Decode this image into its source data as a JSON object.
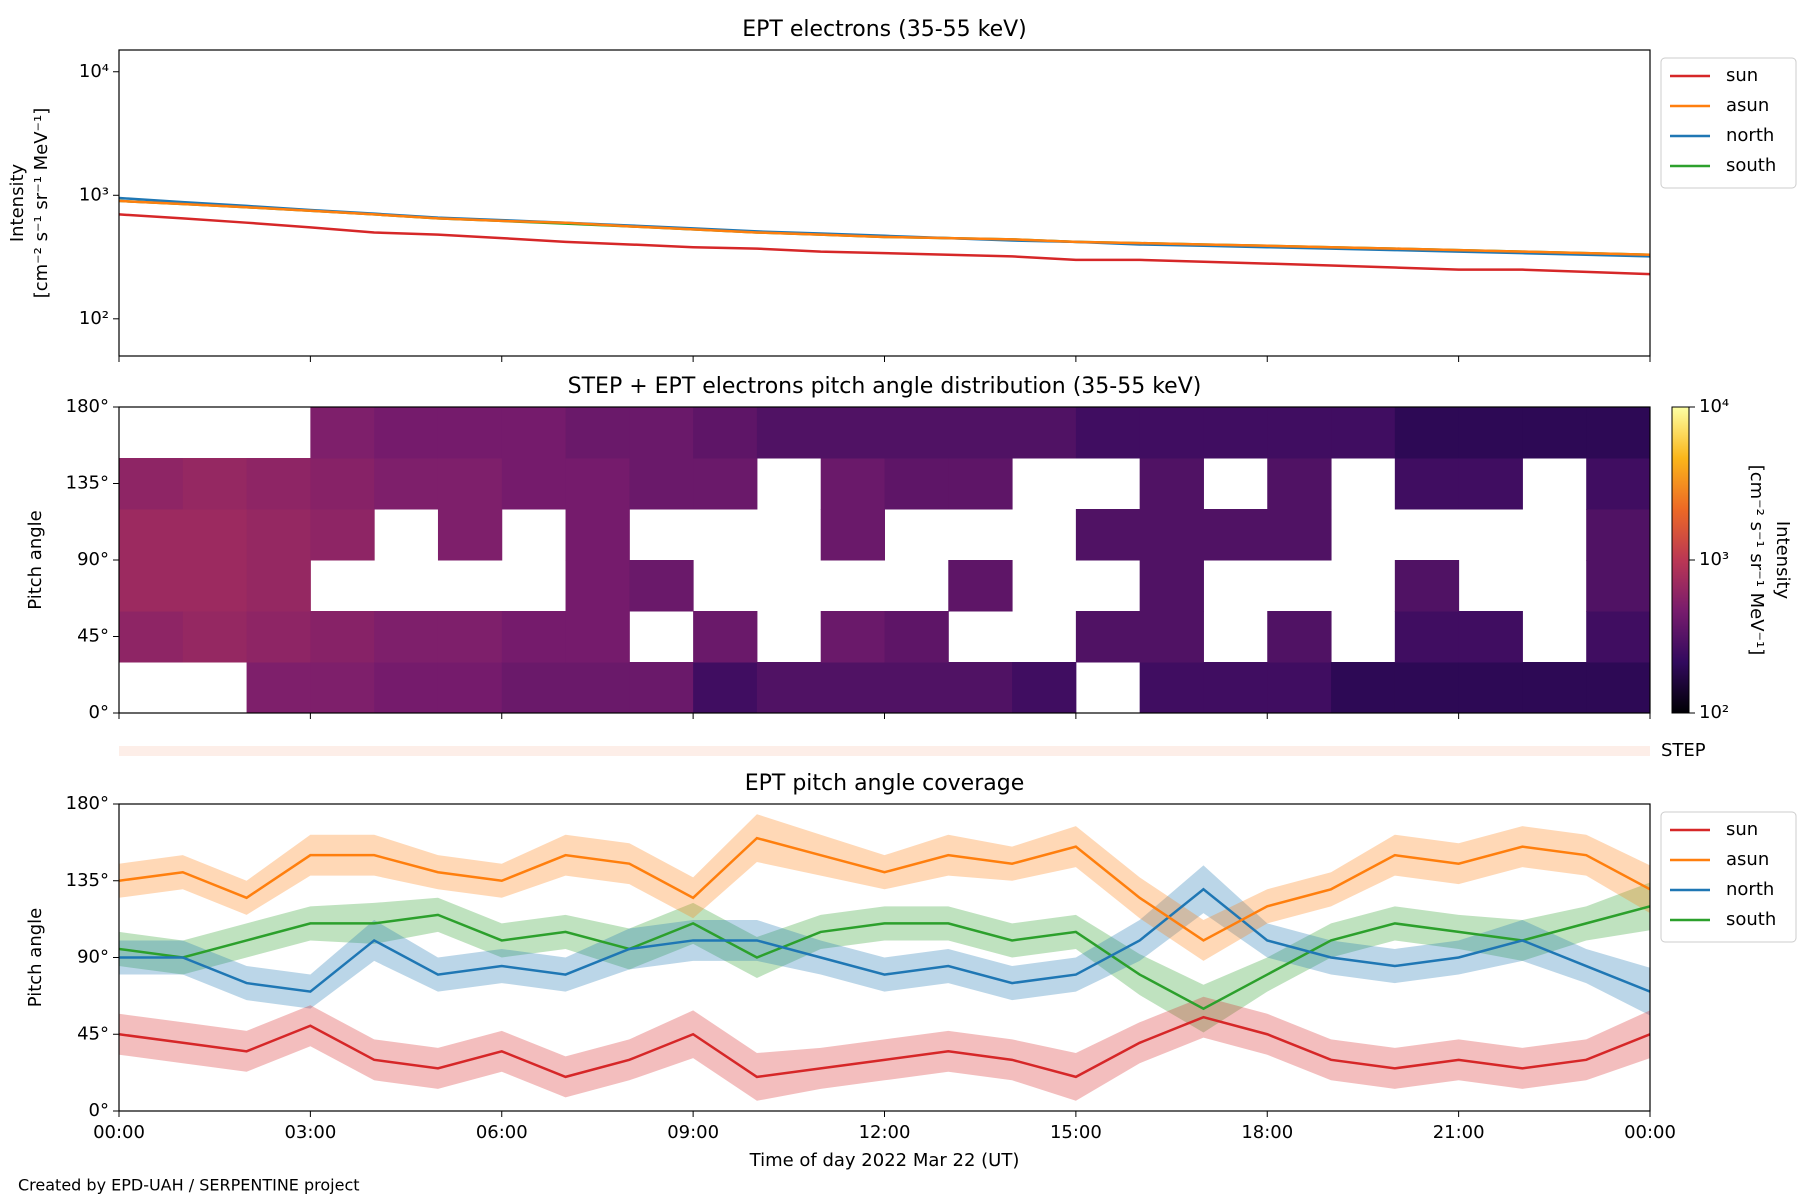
{
  "chart_data": [
    {
      "type": "line",
      "title": "EPT electrons (35-55 keV)",
      "ylabel": [
        "Intensity",
        "[cm⁻² s⁻¹ sr⁻¹ MeV⁻¹]"
      ],
      "log_y": true,
      "ylim": [
        50,
        15000
      ],
      "yticks": [
        {
          "value": 100,
          "label": "10²"
        },
        {
          "value": 1000,
          "label": "10³"
        },
        {
          "value": 10000,
          "label": "10⁴"
        }
      ],
      "x": [
        0,
        1,
        2,
        3,
        4,
        5,
        6,
        7,
        8,
        9,
        10,
        11,
        12,
        13,
        14,
        15,
        16,
        17,
        18,
        19,
        20,
        21,
        22,
        23,
        24
      ],
      "xlim": [
        0,
        24
      ],
      "legend": "outside upper right",
      "series": [
        {
          "name": "sun",
          "color": "#d62728",
          "values": [
            700,
            650,
            600,
            550,
            500,
            480,
            450,
            420,
            400,
            380,
            370,
            350,
            340,
            330,
            320,
            300,
            300,
            290,
            280,
            270,
            260,
            250,
            250,
            240,
            230
          ]
        },
        {
          "name": "asun",
          "color": "#ff7f0e",
          "values": [
            900,
            850,
            800,
            750,
            700,
            650,
            620,
            600,
            560,
            530,
            500,
            480,
            460,
            450,
            440,
            420,
            410,
            400,
            390,
            380,
            370,
            360,
            350,
            340,
            330
          ]
        },
        {
          "name": "north",
          "color": "#1f77b4",
          "values": [
            950,
            880,
            820,
            760,
            710,
            660,
            630,
            600,
            570,
            540,
            510,
            490,
            470,
            450,
            430,
            420,
            400,
            390,
            380,
            370,
            360,
            350,
            340,
            330,
            320
          ]
        },
        {
          "name": "south",
          "color": "#2ca02c",
          "values": [
            900,
            850,
            800,
            750,
            700,
            650,
            620,
            590,
            560,
            530,
            500,
            480,
            460,
            450,
            440,
            420,
            410,
            400,
            390,
            380,
            370,
            360,
            350,
            340,
            330
          ]
        }
      ]
    },
    {
      "type": "heatmap",
      "title": "STEP + EPT electrons pitch angle distribution (35-55 keV)",
      "ylabel": "Pitch angle",
      "xlim": [
        0,
        24
      ],
      "ylim": [
        0,
        180
      ],
      "yticks": [
        {
          "value": 0,
          "label": "0°"
        },
        {
          "value": 45,
          "label": "45°"
        },
        {
          "value": 90,
          "label": "90°"
        },
        {
          "value": 135,
          "label": "135°"
        },
        {
          "value": 180,
          "label": "180°"
        }
      ],
      "xbins": [
        0,
        1,
        2,
        3,
        4,
        5,
        6,
        7,
        8,
        9,
        10,
        11,
        12,
        13,
        14,
        15,
        16,
        17,
        18,
        19,
        20,
        21,
        22,
        23,
        24
      ],
      "ybins": [
        0,
        30,
        60,
        90,
        120,
        150,
        180
      ],
      "z": [
        [
          null,
          600,
          700,
          700,
          600,
          null
        ],
        [
          null,
          650,
          700,
          700,
          650,
          null
        ],
        [
          500,
          600,
          650,
          650,
          600,
          null
        ],
        [
          500,
          550,
          null,
          600,
          550,
          500
        ],
        [
          450,
          500,
          null,
          null,
          500,
          450
        ],
        [
          450,
          500,
          null,
          500,
          500,
          450
        ],
        [
          400,
          450,
          null,
          null,
          450,
          450
        ],
        [
          400,
          450,
          450,
          450,
          450,
          400
        ],
        [
          400,
          null,
          400,
          null,
          400,
          400
        ],
        [
          250,
          400,
          null,
          null,
          400,
          350
        ],
        [
          300,
          null,
          null,
          null,
          null,
          300
        ],
        [
          300,
          400,
          null,
          400,
          400,
          300
        ],
        [
          300,
          350,
          null,
          null,
          350,
          300
        ],
        [
          300,
          null,
          350,
          null,
          350,
          300
        ],
        [
          250,
          null,
          null,
          null,
          null,
          300
        ],
        [
          null,
          300,
          null,
          300,
          null,
          250
        ],
        [
          250,
          300,
          300,
          300,
          300,
          250
        ],
        [
          250,
          null,
          null,
          300,
          null,
          250
        ],
        [
          250,
          300,
          null,
          300,
          300,
          250
        ],
        [
          200,
          null,
          null,
          null,
          null,
          250
        ],
        [
          200,
          250,
          300,
          null,
          250,
          200
        ],
        [
          200,
          250,
          null,
          null,
          250,
          200
        ],
        [
          200,
          null,
          null,
          null,
          null,
          200
        ],
        [
          200,
          250,
          300,
          300,
          250,
          200
        ]
      ],
      "colormap": [
        "#000004",
        "#320a5e",
        "#781c6d",
        "#bb3754",
        "#ed6925",
        "#fbb61a",
        "#fcffa4"
      ],
      "clim": [
        100,
        10000
      ],
      "log_c": true,
      "cticks": [
        {
          "value": 100,
          "label": "10²"
        },
        {
          "value": 1000,
          "label": "10³"
        },
        {
          "value": 10000,
          "label": "10⁴"
        }
      ],
      "clabel": [
        "Intensity",
        "[cm⁻² s⁻¹ sr⁻¹ MeV⁻¹]"
      ],
      "strip_label": "STEP",
      "strip_color": "#fdeee8"
    },
    {
      "type": "line",
      "title": "EPT pitch angle coverage",
      "ylabel": "Pitch angle",
      "xlabel": "Time of day 2022 Mar 22 (UT)",
      "ylim": [
        0,
        180
      ],
      "yticks": [
        {
          "value": 0,
          "label": "0°"
        },
        {
          "value": 45,
          "label": "45°"
        },
        {
          "value": 90,
          "label": "90°"
        },
        {
          "value": 135,
          "label": "135°"
        },
        {
          "value": 180,
          "label": "180°"
        }
      ],
      "x": [
        0,
        1,
        2,
        3,
        4,
        5,
        6,
        7,
        8,
        9,
        10,
        11,
        12,
        13,
        14,
        15,
        16,
        17,
        18,
        19,
        20,
        21,
        22,
        23,
        24
      ],
      "xlim": [
        0,
        24
      ],
      "xticks": [
        {
          "value": 0,
          "label": "00:00"
        },
        {
          "value": 3,
          "label": "03:00"
        },
        {
          "value": 6,
          "label": "06:00"
        },
        {
          "value": 9,
          "label": "09:00"
        },
        {
          "value": 12,
          "label": "12:00"
        },
        {
          "value": 15,
          "label": "15:00"
        },
        {
          "value": 18,
          "label": "18:00"
        },
        {
          "value": 21,
          "label": "21:00"
        },
        {
          "value": 24,
          "label": "00:00"
        }
      ],
      "legend": "outside upper right",
      "series": [
        {
          "name": "sun",
          "color": "#d62728",
          "values": [
            45,
            40,
            35,
            50,
            30,
            25,
            35,
            20,
            30,
            45,
            20,
            25,
            30,
            35,
            30,
            20,
            40,
            55,
            45,
            30,
            25,
            30,
            25,
            30,
            45
          ],
          "errors": [
            12,
            12,
            12,
            12,
            12,
            12,
            12,
            12,
            12,
            14,
            14,
            12,
            12,
            12,
            12,
            14,
            12,
            12,
            12,
            12,
            12,
            12,
            12,
            12,
            14
          ]
        },
        {
          "name": "asun",
          "color": "#ff7f0e",
          "values": [
            135,
            140,
            125,
            150,
            150,
            140,
            135,
            150,
            145,
            125,
            160,
            150,
            140,
            150,
            145,
            155,
            125,
            100,
            120,
            130,
            150,
            145,
            155,
            150,
            130
          ],
          "errors": [
            10,
            10,
            10,
            12,
            12,
            10,
            10,
            12,
            12,
            12,
            14,
            12,
            10,
            12,
            10,
            12,
            12,
            12,
            10,
            10,
            12,
            12,
            12,
            12,
            14
          ]
        },
        {
          "name": "north",
          "color": "#1f77b4",
          "values": [
            90,
            90,
            75,
            70,
            100,
            80,
            85,
            80,
            95,
            100,
            100,
            90,
            80,
            85,
            75,
            80,
            100,
            130,
            100,
            90,
            85,
            90,
            100,
            85,
            70
          ],
          "errors": [
            10,
            10,
            10,
            10,
            12,
            10,
            10,
            10,
            12,
            12,
            12,
            10,
            10,
            10,
            10,
            10,
            12,
            14,
            10,
            10,
            10,
            10,
            12,
            10,
            14
          ]
        },
        {
          "name": "south",
          "color": "#2ca02c",
          "values": [
            95,
            90,
            100,
            110,
            110,
            115,
            100,
            105,
            95,
            110,
            90,
            105,
            110,
            110,
            100,
            105,
            80,
            60,
            80,
            100,
            110,
            105,
            100,
            110,
            120
          ],
          "errors": [
            10,
            10,
            10,
            10,
            12,
            10,
            10,
            10,
            12,
            12,
            12,
            10,
            10,
            10,
            10,
            10,
            12,
            14,
            10,
            10,
            10,
            10,
            12,
            10,
            14
          ]
        }
      ]
    }
  ],
  "footer": "Created by EPD-UAH / SERPENTINE project"
}
